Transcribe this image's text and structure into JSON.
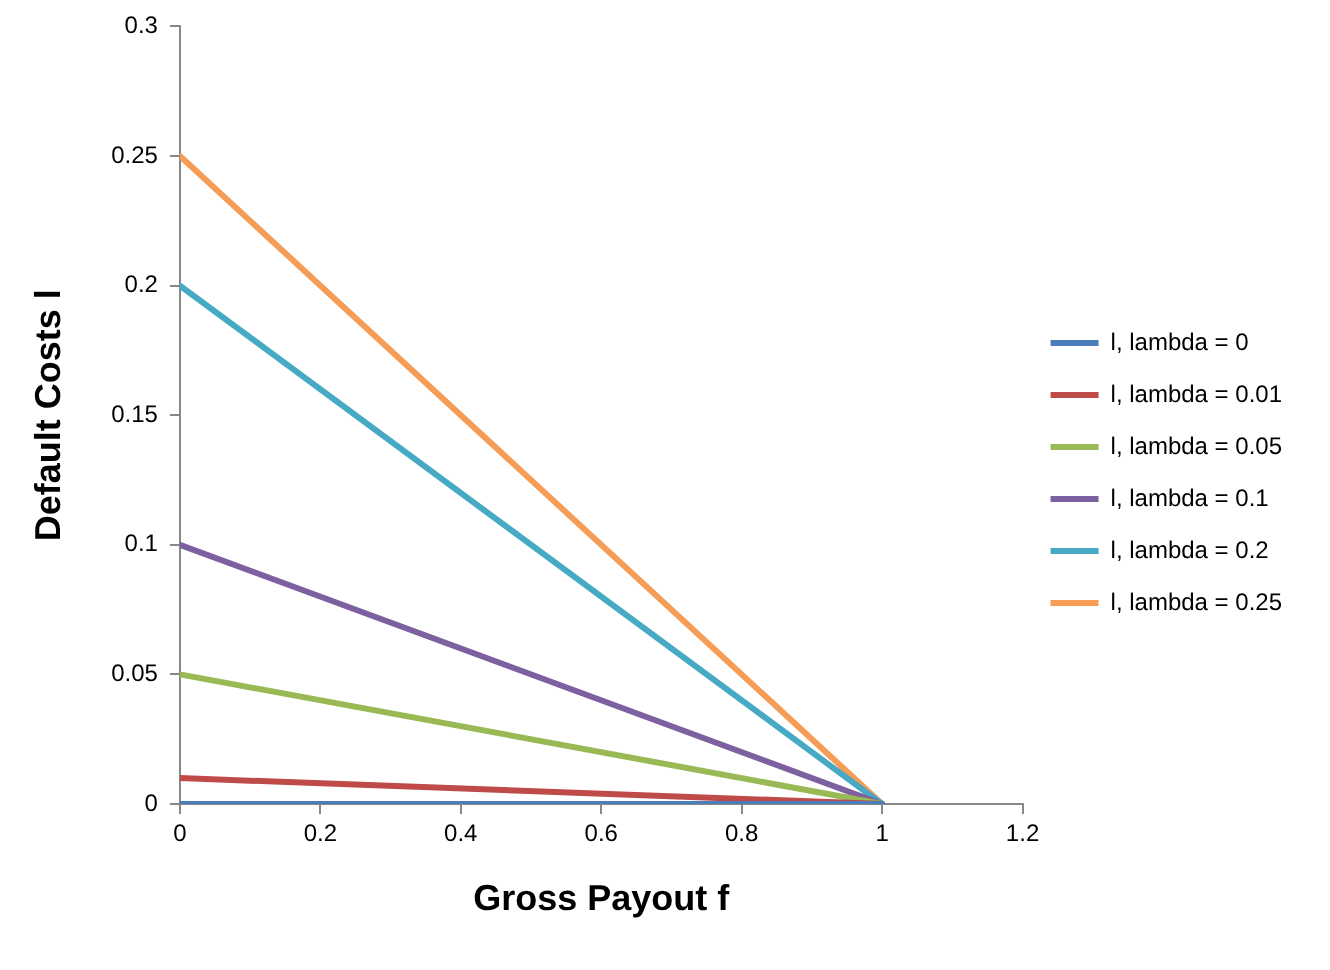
{
  "chart_data": {
    "type": "line",
    "xlabel": "Gross Payout f",
    "ylabel": "Default Costs l",
    "xlim": [
      0,
      1.2
    ],
    "xticks": [
      0,
      0.2,
      0.4,
      0.6,
      0.8,
      1,
      1.2
    ],
    "ylim": [
      0,
      0.3
    ],
    "yticks": [
      0,
      0.05,
      0.1,
      0.15,
      0.2,
      0.25,
      0.3
    ],
    "grid": false,
    "legend": "right",
    "marker": "none",
    "line_style": "solid",
    "x": [
      0,
      1
    ],
    "series": [
      {
        "name": "l, lambda = 0",
        "color": "#4a7ebb",
        "values": [
          0,
          0
        ]
      },
      {
        "name": "l, lambda = 0.01",
        "color": "#be4b48",
        "values": [
          0.01,
          0
        ]
      },
      {
        "name": "l, lambda = 0.05",
        "color": "#98b954",
        "values": [
          0.05,
          0
        ]
      },
      {
        "name": "l, lambda = 0.1",
        "color": "#7d60a0",
        "values": [
          0.1,
          0
        ]
      },
      {
        "name": "l, lambda = 0.2",
        "color": "#46aac5",
        "values": [
          0.2,
          0
        ]
      },
      {
        "name": "l, lambda = 0.25",
        "color": "#f59d56",
        "values": [
          0.25,
          0
        ]
      }
    ]
  }
}
